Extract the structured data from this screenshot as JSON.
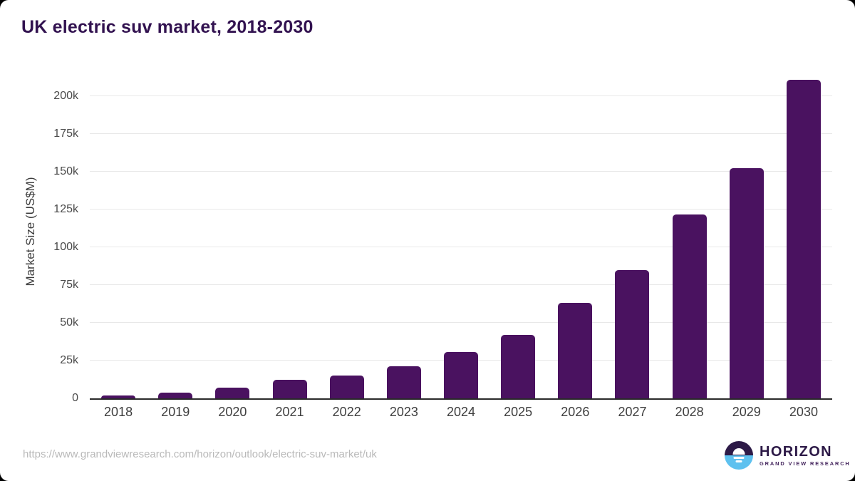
{
  "chart_data": {
    "type": "bar",
    "title": "UK electric suv market, 2018-2030",
    "xlabel": "",
    "ylabel": "Market Size (US$M)",
    "categories": [
      "2018",
      "2019",
      "2020",
      "2021",
      "2022",
      "2023",
      "2024",
      "2025",
      "2026",
      "2027",
      "2028",
      "2029",
      "2030"
    ],
    "values": [
      2000,
      4000,
      7000,
      12500,
      15000,
      21000,
      30500,
      42000,
      63000,
      85000,
      121500,
      152500,
      210800
    ],
    "unit": "US$M",
    "ylim": [
      0,
      212000
    ],
    "yticks": {
      "values": [
        0,
        25000,
        50000,
        75000,
        100000,
        125000,
        150000,
        175000,
        200000
      ],
      "labels": [
        "0",
        "25k",
        "50k",
        "75k",
        "100k",
        "125k",
        "150k",
        "175k",
        "200k"
      ]
    },
    "grid": "horizontal",
    "legend": "none",
    "bar_color": "#4a1260"
  },
  "footer": {
    "source_url": "https://www.grandviewresearch.com/horizon/outlook/electric-suv-market/uk",
    "logo": {
      "brand": "HORIZON",
      "subtext": "GRAND VIEW RESEARCH"
    }
  },
  "colors": {
    "bar": "#4a1260",
    "title": "#321250",
    "grid": "#e8e8e8",
    "axis": "#2a2a2a",
    "ytick_text": "#4a4a4a",
    "xlabel_text": "#3e3e3e",
    "url_text": "#b9b9b9",
    "logo_dark": "#2d1a47",
    "logo_blue": "#5ec1ef"
  }
}
